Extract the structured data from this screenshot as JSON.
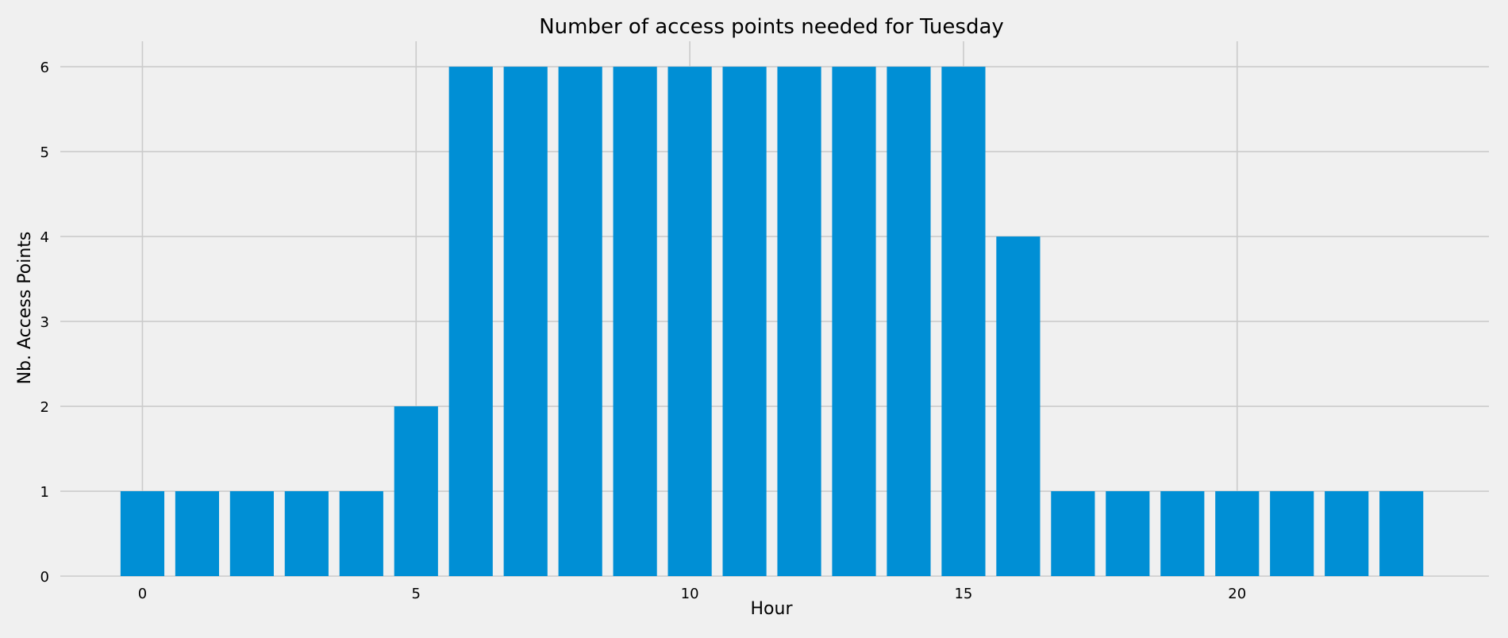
{
  "chart_data": {
    "type": "bar",
    "title": "Number of access points needed for Tuesday",
    "xlabel": "Hour",
    "ylabel": "Nb. Access Points",
    "x": [
      0,
      1,
      2,
      3,
      4,
      5,
      6,
      7,
      8,
      9,
      10,
      11,
      12,
      13,
      14,
      15,
      16,
      17,
      18,
      19,
      20,
      21,
      22,
      23
    ],
    "values": [
      1,
      1,
      1,
      1,
      1,
      2,
      6,
      6,
      6,
      6,
      6,
      6,
      6,
      6,
      6,
      6,
      4,
      1,
      1,
      1,
      1,
      1,
      1,
      1
    ],
    "xticks": [
      0,
      5,
      10,
      15,
      20
    ],
    "yticks": [
      0,
      1,
      2,
      3,
      4,
      5,
      6
    ],
    "xlim": [
      -1.5,
      24.6
    ],
    "ylim": [
      0,
      6.3
    ],
    "grid": true,
    "legend": "none",
    "colors": {
      "bar": "#008fd5",
      "background": "#f0f0f0",
      "grid": "#cbcbcb"
    }
  }
}
